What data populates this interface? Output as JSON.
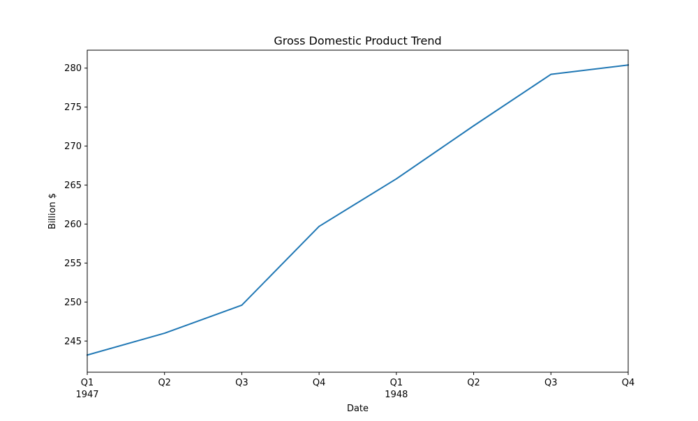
{
  "chart_data": {
    "type": "line",
    "title": "Gross Domestic Product Trend",
    "xlabel": "Date",
    "ylabel": "Billion $",
    "x": [
      "1947 Q1",
      "1947 Q2",
      "1947 Q3",
      "1947 Q4",
      "1948 Q1",
      "1948 Q2",
      "1948 Q3",
      "1948 Q4"
    ],
    "x_tick_labels": [
      {
        "quarter": "Q1",
        "year": "1947"
      },
      {
        "quarter": "Q2",
        "year": ""
      },
      {
        "quarter": "Q3",
        "year": ""
      },
      {
        "quarter": "Q4",
        "year": ""
      },
      {
        "quarter": "Q1",
        "year": "1948"
      },
      {
        "quarter": "Q2",
        "year": ""
      },
      {
        "quarter": "Q3",
        "year": ""
      },
      {
        "quarter": "Q4",
        "year": ""
      }
    ],
    "series": [
      {
        "values": [
          243.2,
          246.0,
          249.6,
          259.7,
          265.8,
          272.6,
          279.2,
          280.4
        ],
        "color": "#1f77b4"
      }
    ],
    "ylim": [
      241.0,
      282.3
    ],
    "yticks": [
      245,
      250,
      255,
      260,
      265,
      270,
      275,
      280
    ],
    "grid": false,
    "legend": "none"
  }
}
